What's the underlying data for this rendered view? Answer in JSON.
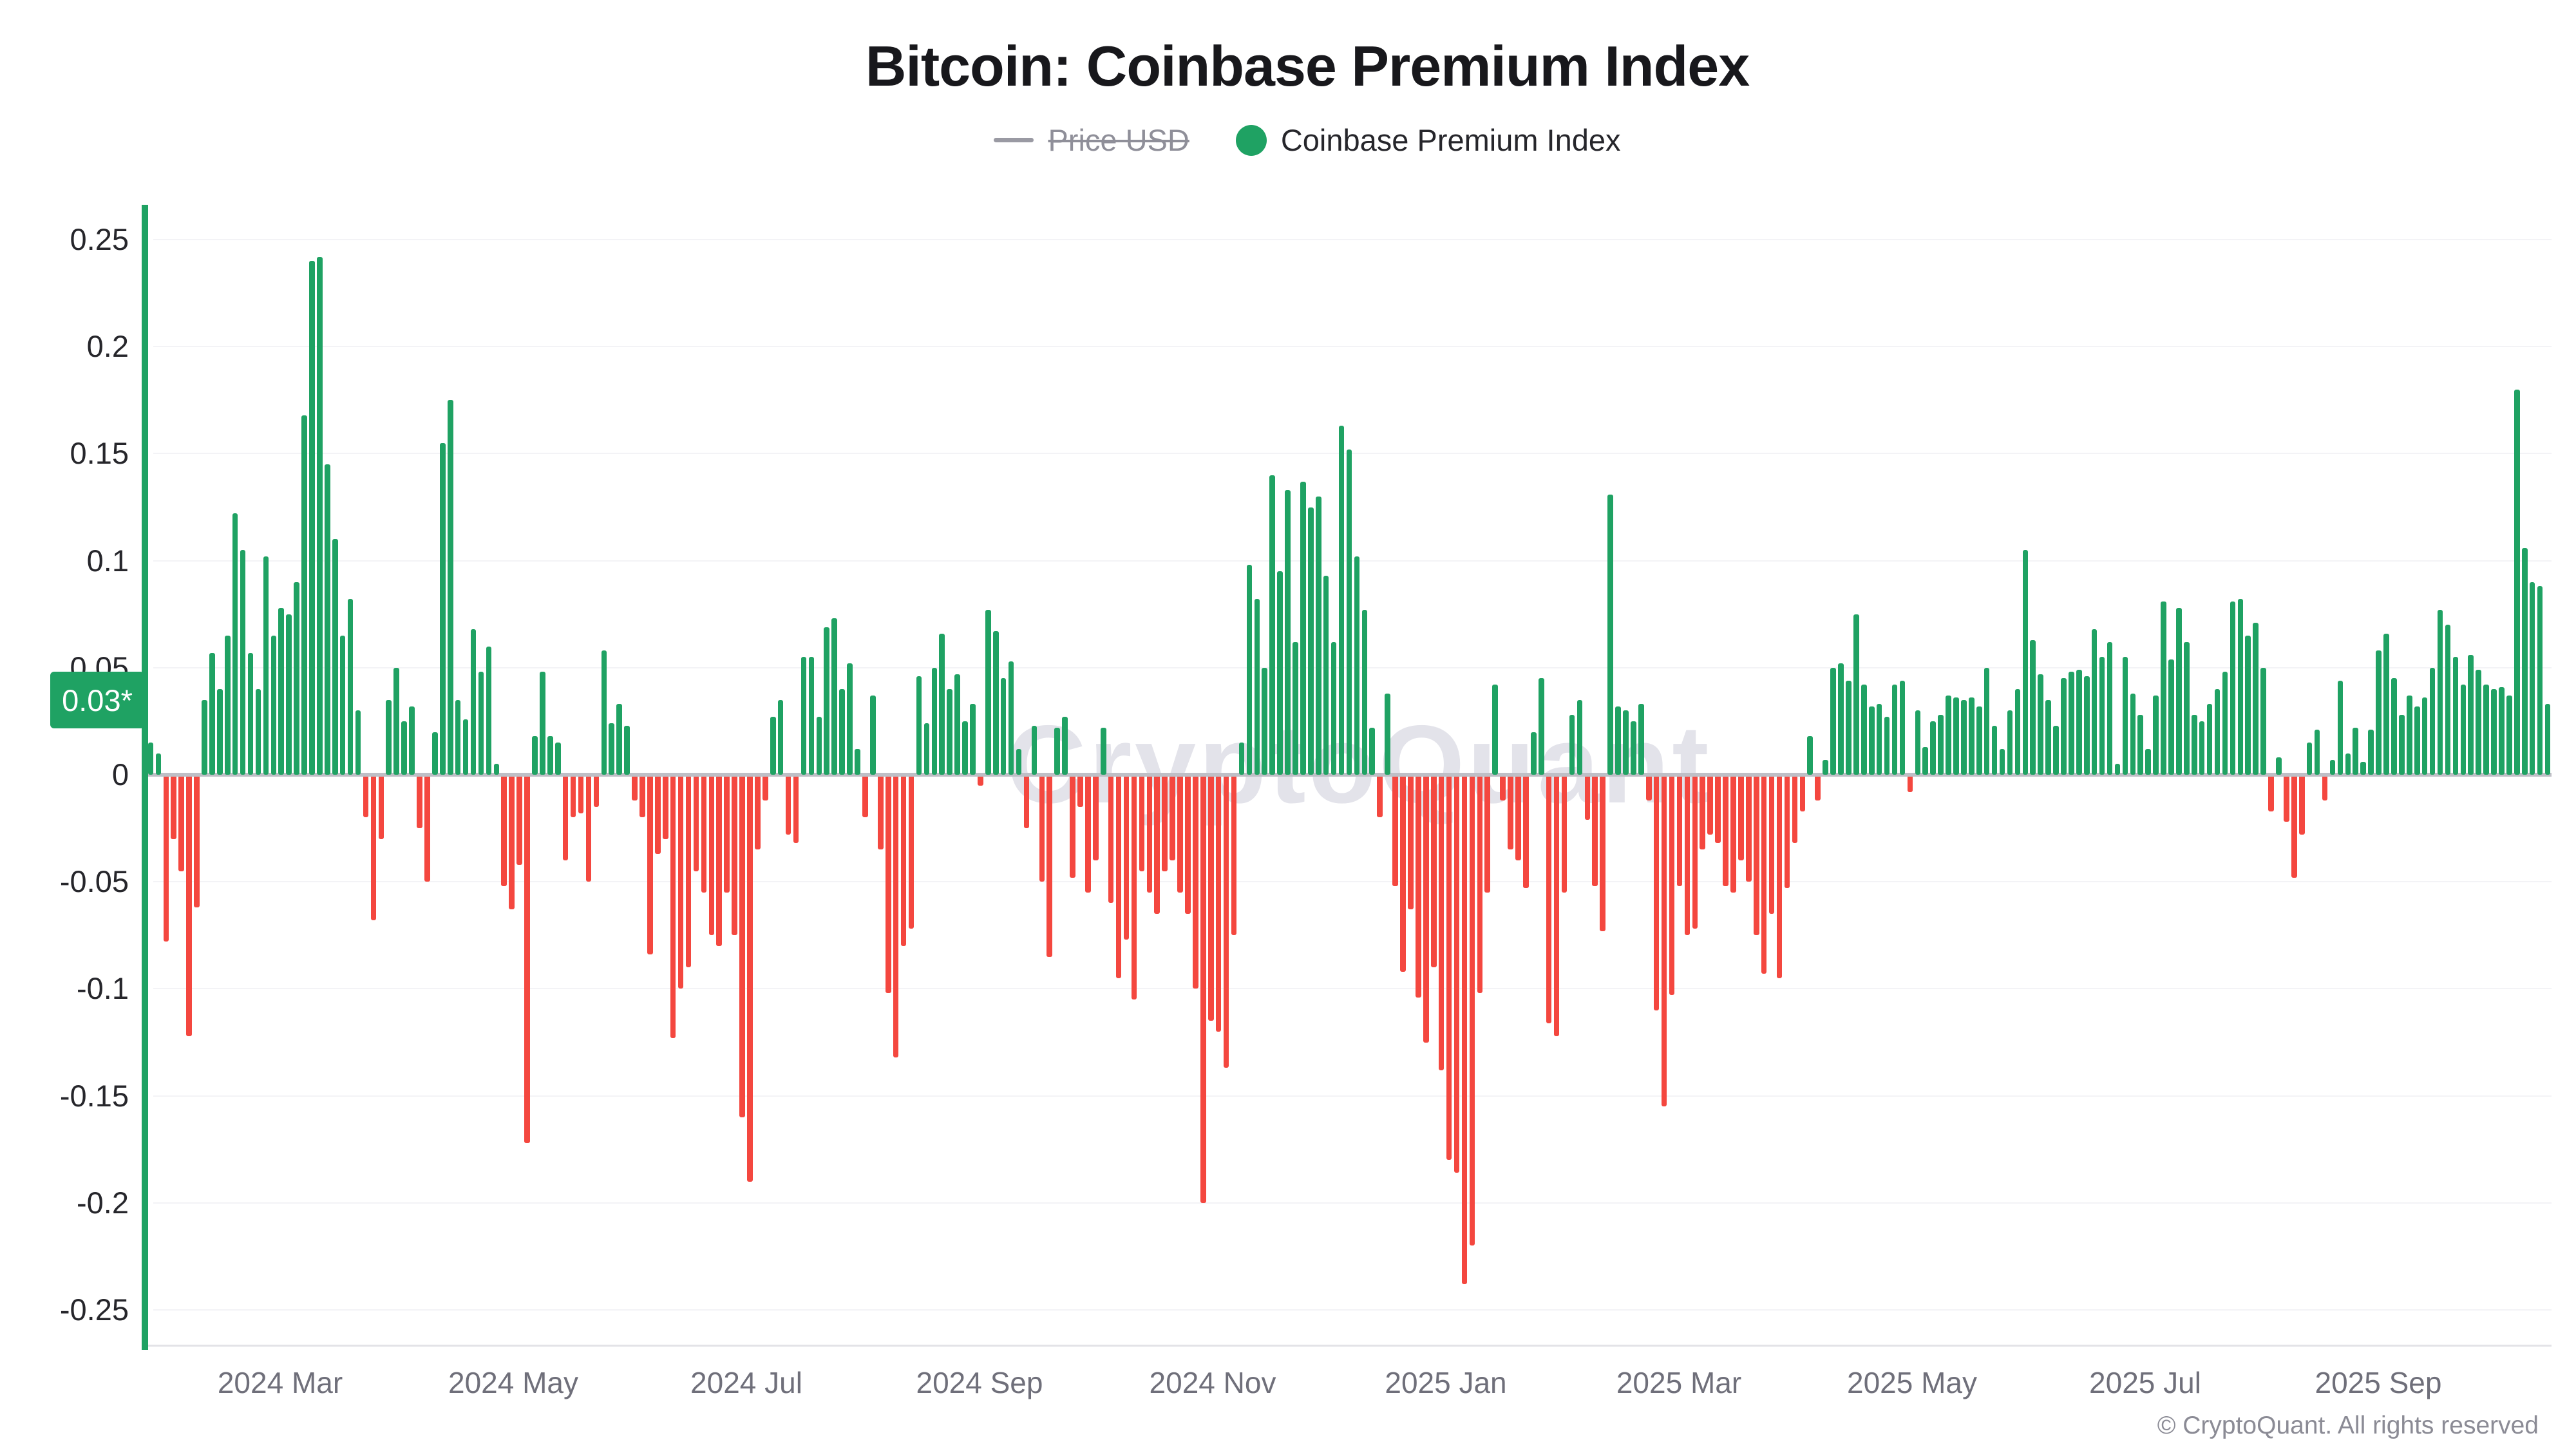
{
  "title": "Bitcoin: Coinbase Premium Index",
  "legend": {
    "price_usd_label": "Price USD",
    "premium_label": "Coinbase Premium Index"
  },
  "badge": {
    "current_value_label": "0.03*"
  },
  "watermark_text": "CryptoQuant",
  "copyright_text": "© CryptoQuant. All rights reserved",
  "colors": {
    "positive": "#1fa263",
    "negative": "#f4473f",
    "axis_line": "#1fa263",
    "badge_bg": "#1fa263",
    "badge_text": "#ffffff",
    "gridline": "#f3f3f6",
    "zero_line": "#bfbfc6",
    "y_label": "#26262b",
    "x_label": "#6f6f7a",
    "disabled_legend": "#8f8f99",
    "watermark": "#e3e3ea"
  },
  "chart_data": {
    "type": "bar",
    "title": "Bitcoin: Coinbase Premium Index",
    "series_name": "Coinbase Premium Index",
    "hidden_series": "Price USD",
    "xlabel": "",
    "ylabel": "",
    "ylim": [
      -0.27,
      0.27
    ],
    "grid": true,
    "legend_position": "top",
    "y_ticks": [
      "0.25",
      "0.2",
      "0.15",
      "0.1",
      "0.05",
      "0",
      "-0.05",
      "-0.1",
      "-0.15",
      "-0.2",
      "-0.25"
    ],
    "y_tick_values": [
      0.25,
      0.2,
      0.15,
      0.1,
      0.05,
      0,
      -0.05,
      -0.1,
      -0.15,
      -0.2,
      -0.25
    ],
    "x_tick_labels": [
      "2024 Mar",
      "2024 May",
      "2024 Jul",
      "2024 Sep",
      "2024 Nov",
      "2025 Jan",
      "2025 Mar",
      "2025 May",
      "2025 Jul",
      "2025 Sep"
    ],
    "start_date": "2024-01-26",
    "end_date": "2025-10-13",
    "interval_days": 2,
    "current_value": 0.03,
    "values": [
      0.015,
      0.01,
      -0.078,
      -0.03,
      -0.045,
      -0.122,
      -0.062,
      0.035,
      0.057,
      0.04,
      0.065,
      0.122,
      0.105,
      0.057,
      0.04,
      0.102,
      0.065,
      0.078,
      0.075,
      0.09,
      0.168,
      0.24,
      0.242,
      0.145,
      0.11,
      0.065,
      0.082,
      0.03,
      -0.02,
      -0.068,
      -0.03,
      0.035,
      0.05,
      0.025,
      0.032,
      -0.025,
      -0.05,
      0.02,
      0.155,
      0.175,
      0.035,
      0.026,
      0.068,
      0.048,
      0.06,
      0.005,
      -0.052,
      -0.063,
      -0.042,
      -0.172,
      0.018,
      0.048,
      0.018,
      0.015,
      -0.04,
      -0.02,
      -0.018,
      -0.05,
      -0.015,
      0.058,
      0.024,
      0.033,
      0.023,
      -0.012,
      -0.02,
      -0.084,
      -0.037,
      -0.03,
      -0.123,
      -0.1,
      -0.09,
      -0.045,
      -0.055,
      -0.075,
      -0.08,
      -0.055,
      -0.075,
      -0.16,
      -0.19,
      -0.035,
      -0.012,
      0.027,
      0.035,
      -0.028,
      -0.032,
      0.055,
      0.055,
      0.027,
      0.069,
      0.073,
      0.04,
      0.052,
      0.012,
      -0.02,
      0.037,
      -0.035,
      -0.102,
      -0.132,
      -0.08,
      -0.072,
      0.046,
      0.024,
      0.05,
      0.066,
      0.04,
      0.047,
      0.025,
      0.033,
      -0.005,
      0.077,
      0.067,
      0.045,
      0.053,
      0.012,
      -0.025,
      0.023,
      -0.05,
      -0.085,
      0.022,
      0.027,
      -0.048,
      -0.015,
      -0.055,
      -0.04,
      0.022,
      -0.06,
      -0.095,
      -0.077,
      -0.105,
      -0.045,
      -0.055,
      -0.065,
      -0.045,
      -0.04,
      -0.055,
      -0.065,
      -0.1,
      -0.2,
      -0.115,
      -0.12,
      -0.137,
      -0.075,
      0.015,
      0.098,
      0.082,
      0.05,
      0.14,
      0.095,
      0.133,
      0.062,
      0.137,
      0.125,
      0.13,
      0.093,
      0.062,
      0.163,
      0.152,
      0.102,
      0.077,
      0.022,
      -0.02,
      0.038,
      -0.052,
      -0.092,
      -0.063,
      -0.104,
      -0.125,
      -0.09,
      -0.138,
      -0.18,
      -0.186,
      -0.238,
      -0.22,
      -0.102,
      -0.055,
      0.042,
      -0.012,
      -0.035,
      -0.04,
      -0.053,
      0.02,
      0.045,
      -0.116,
      -0.122,
      -0.055,
      0.028,
      0.035,
      -0.021,
      -0.052,
      -0.073,
      0.131,
      0.032,
      0.03,
      0.025,
      0.033,
      -0.012,
      -0.11,
      -0.155,
      -0.103,
      -0.052,
      -0.075,
      -0.072,
      -0.035,
      -0.028,
      -0.032,
      -0.052,
      -0.055,
      -0.04,
      -0.05,
      -0.075,
      -0.093,
      -0.065,
      -0.095,
      -0.053,
      -0.032,
      -0.017,
      0.018,
      -0.012,
      0.007,
      0.05,
      0.052,
      0.044,
      0.075,
      0.042,
      0.032,
      0.033,
      0.027,
      0.042,
      0.044,
      -0.008,
      0.03,
      0.013,
      0.025,
      0.028,
      0.037,
      0.036,
      0.035,
      0.036,
      0.032,
      0.05,
      0.023,
      0.012,
      0.03,
      0.04,
      0.105,
      0.063,
      0.047,
      0.035,
      0.023,
      0.045,
      0.048,
      0.049,
      0.046,
      0.068,
      0.055,
      0.062,
      0.005,
      0.055,
      0.038,
      0.028,
      0.012,
      0.037,
      0.081,
      0.054,
      0.078,
      0.062,
      0.028,
      0.025,
      0.033,
      0.04,
      0.048,
      0.081,
      0.082,
      0.065,
      0.071,
      0.05,
      -0.017,
      0.008,
      -0.022,
      -0.048,
      -0.028,
      0.015,
      0.021,
      -0.012,
      0.007,
      0.044,
      0.01,
      0.022,
      0.006,
      0.021,
      0.058,
      0.066,
      0.045,
      0.028,
      0.037,
      0.032,
      0.036,
      0.05,
      0.077,
      0.07,
      0.055,
      0.042,
      0.056,
      0.049,
      0.042,
      0.04,
      0.041,
      0.037,
      0.18,
      0.106,
      0.09,
      0.088,
      0.033
    ]
  }
}
